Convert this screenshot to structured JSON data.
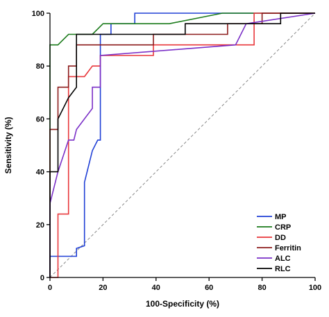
{
  "chart_data": {
    "type": "line",
    "title": "",
    "xlabel": "100-Specificity (%)",
    "ylabel": "Sensitivity (%)",
    "xlim": [
      0,
      100
    ],
    "ylim": [
      0,
      100
    ],
    "xticks": [
      "0",
      "20",
      "40",
      "60",
      "80",
      "100"
    ],
    "yticks": [
      "0",
      "20",
      "40",
      "60",
      "80",
      "100"
    ],
    "reference_line": "diagonal-dashed",
    "grid": false,
    "legend_position": "bottom-right",
    "series": [
      {
        "name": "MP",
        "color": "#1f3fd6",
        "points": [
          [
            0,
            0
          ],
          [
            0,
            8
          ],
          [
            10,
            8
          ],
          [
            10,
            11
          ],
          [
            13,
            12
          ],
          [
            13,
            36
          ],
          [
            16,
            48
          ],
          [
            18,
            52
          ],
          [
            19,
            52
          ],
          [
            19,
            92
          ],
          [
            23,
            92
          ],
          [
            23,
            96
          ],
          [
            32,
            96
          ],
          [
            32,
            100
          ],
          [
            100,
            100
          ]
        ]
      },
      {
        "name": "CRP",
        "color": "#1a7a1a",
        "points": [
          [
            0,
            0
          ],
          [
            0,
            88
          ],
          [
            3,
            88
          ],
          [
            7,
            92
          ],
          [
            16,
            92
          ],
          [
            20,
            96
          ],
          [
            45,
            96
          ],
          [
            65,
            100
          ],
          [
            100,
            100
          ]
        ]
      },
      {
        "name": "DD",
        "color": "#e8363a",
        "points": [
          [
            0,
            0
          ],
          [
            3,
            0
          ],
          [
            3,
            24
          ],
          [
            7,
            24
          ],
          [
            7,
            76
          ],
          [
            13,
            76
          ],
          [
            16,
            80
          ],
          [
            19,
            80
          ],
          [
            19,
            84
          ],
          [
            39,
            84
          ],
          [
            39,
            88
          ],
          [
            77,
            88
          ],
          [
            77,
            100
          ],
          [
            100,
            100
          ]
        ]
      },
      {
        "name": "Ferritin",
        "color": "#8b1a1a",
        "points": [
          [
            0,
            0
          ],
          [
            0,
            56
          ],
          [
            3,
            56
          ],
          [
            3,
            72
          ],
          [
            7,
            72
          ],
          [
            7,
            80
          ],
          [
            10,
            80
          ],
          [
            10,
            88
          ],
          [
            39,
            88
          ],
          [
            39,
            92
          ],
          [
            67,
            92
          ],
          [
            67,
            96
          ],
          [
            80,
            96
          ],
          [
            80,
            100
          ],
          [
            100,
            100
          ]
        ]
      },
      {
        "name": "ALC",
        "color": "#7a2fc7",
        "points": [
          [
            0,
            0
          ],
          [
            0,
            28
          ],
          [
            3,
            40
          ],
          [
            7,
            52
          ],
          [
            9,
            52
          ],
          [
            10,
            56
          ],
          [
            16,
            64
          ],
          [
            16,
            72
          ],
          [
            19,
            72
          ],
          [
            19,
            84
          ],
          [
            70,
            88
          ],
          [
            74,
            96
          ],
          [
            100,
            100
          ]
        ]
      },
      {
        "name": "RLC",
        "color": "#000000",
        "points": [
          [
            0,
            0
          ],
          [
            0,
            40
          ],
          [
            3,
            40
          ],
          [
            3,
            60
          ],
          [
            7,
            68
          ],
          [
            10,
            72
          ],
          [
            10,
            92
          ],
          [
            51,
            92
          ],
          [
            51,
            96
          ],
          [
            87,
            96
          ],
          [
            87,
            100
          ],
          [
            100,
            100
          ]
        ]
      }
    ]
  }
}
